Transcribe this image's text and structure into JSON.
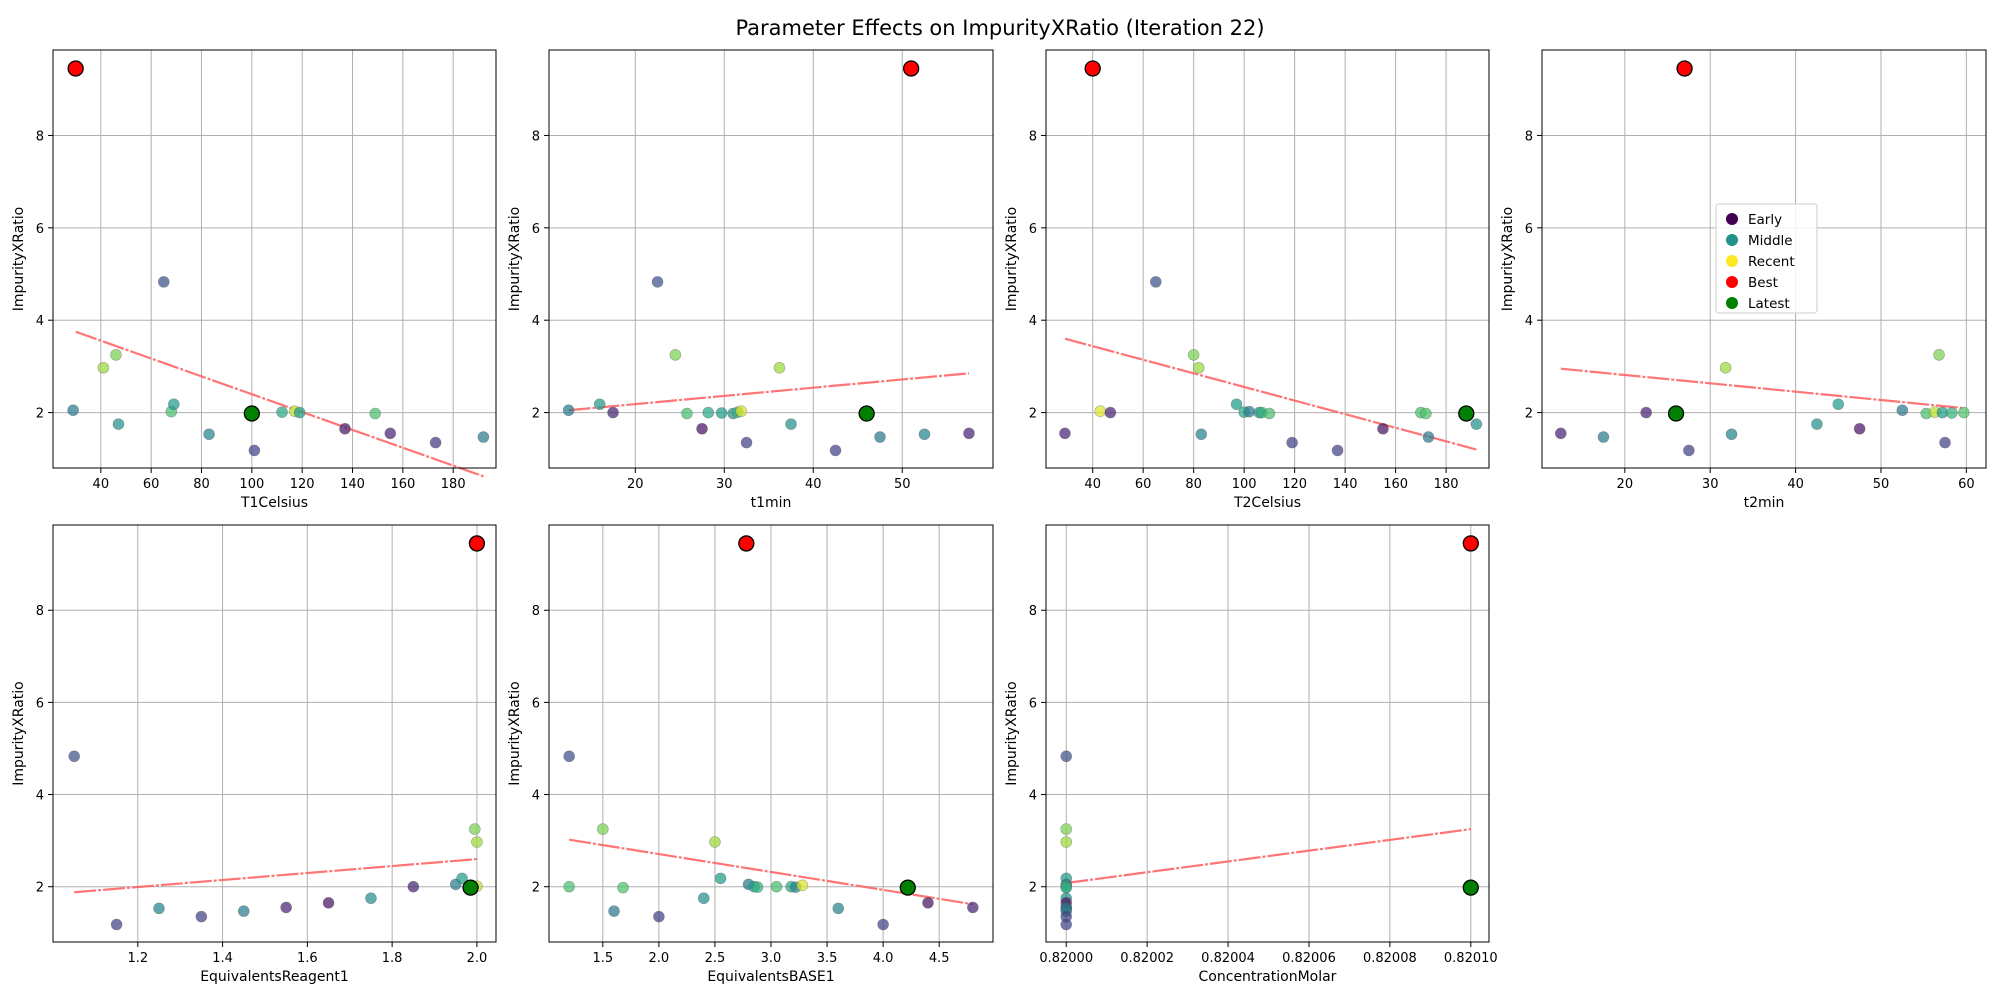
{
  "title": "Parameter Effects on ImpurityXRatio (Iteration 22)",
  "legend": {
    "placement": "inside subplot 4, center-left",
    "entries": [
      {
        "label": "Early",
        "color": "#440154"
      },
      {
        "label": "Middle",
        "color": "#21918c"
      },
      {
        "label": "Recent",
        "color": "#fde725"
      },
      {
        "label": "Best",
        "color": "#ff0000"
      },
      {
        "label": "Latest",
        "color": "#008000"
      }
    ]
  },
  "colors": {
    "trend": "#ff6666",
    "grid": "#b0b0b0",
    "best": "#ff0000",
    "latest": "#008000"
  },
  "chart_data": [
    {
      "type": "scatter",
      "xlabel": "T1Celsius",
      "ylabel": "ImpurityXRatio",
      "xlim": [
        21,
        197
      ],
      "ylim": [
        0.8,
        9.85
      ],
      "xticks": [
        40,
        60,
        80,
        100,
        120,
        140,
        160,
        180
      ],
      "xtick_labels": [
        "40",
        "60",
        "80",
        "100",
        "120",
        "140",
        "160",
        "180"
      ],
      "yticks": [
        2,
        4,
        6,
        8
      ],
      "grid": true,
      "trend": [
        [
          30,
          3.75
        ],
        [
          192,
          0.62
        ]
      ],
      "points": [
        {
          "x": 29,
          "y": 2.05,
          "t": 0.4
        },
        {
          "x": 41,
          "y": 2.97,
          "t": 0.85
        },
        {
          "x": 46,
          "y": 3.25,
          "t": 0.8
        },
        {
          "x": 47,
          "y": 1.75,
          "t": 0.5
        },
        {
          "x": 65,
          "y": 4.83,
          "t": 0.25
        },
        {
          "x": 68,
          "y": 2.02,
          "t": 0.7
        },
        {
          "x": 69,
          "y": 2.18,
          "t": 0.55
        },
        {
          "x": 83,
          "y": 1.53,
          "t": 0.45
        },
        {
          "x": 101,
          "y": 1.18,
          "t": 0.2
        },
        {
          "x": 112,
          "y": 2.01,
          "t": 0.6
        },
        {
          "x": 117,
          "y": 2.03,
          "t": 0.9
        },
        {
          "x": 119,
          "y": 2.0,
          "t": 0.55
        },
        {
          "x": 137,
          "y": 1.65,
          "t": 0.05
        },
        {
          "x": 149,
          "y": 1.98,
          "t": 0.7
        },
        {
          "x": 155,
          "y": 1.55,
          "t": 0.1
        },
        {
          "x": 173,
          "y": 1.35,
          "t": 0.15
        },
        {
          "x": 192,
          "y": 1.47,
          "t": 0.4
        }
      ],
      "best": {
        "x": 30,
        "y": 9.45
      },
      "latest": {
        "x": 100,
        "y": 1.98
      }
    },
    {
      "type": "scatter",
      "xlabel": "t1min",
      "ylabel": "ImpurityXRatio",
      "xlim": [
        10.3,
        60.2
      ],
      "ylim": [
        0.8,
        9.85
      ],
      "xticks": [
        20,
        30,
        40,
        50
      ],
      "xtick_labels": [
        "20",
        "30",
        "40",
        "50"
      ],
      "yticks": [
        2,
        4,
        6,
        8
      ],
      "grid": true,
      "trend": [
        [
          12.5,
          2.05
        ],
        [
          57.5,
          2.85
        ]
      ],
      "points": [
        {
          "x": 12.5,
          "y": 2.05,
          "t": 0.4
        },
        {
          "x": 16,
          "y": 2.18,
          "t": 0.55
        },
        {
          "x": 17.5,
          "y": 2.0,
          "t": 0.1
        },
        {
          "x": 22.5,
          "y": 4.83,
          "t": 0.25
        },
        {
          "x": 24.5,
          "y": 3.25,
          "t": 0.8
        },
        {
          "x": 25.8,
          "y": 1.98,
          "t": 0.7
        },
        {
          "x": 27.5,
          "y": 1.65,
          "t": 0.05
        },
        {
          "x": 28.2,
          "y": 2.0,
          "t": 0.6
        },
        {
          "x": 29.7,
          "y": 1.99,
          "t": 0.55
        },
        {
          "x": 31,
          "y": 1.98,
          "t": 0.5
        },
        {
          "x": 31.5,
          "y": 2.01,
          "t": 0.65
        },
        {
          "x": 31.9,
          "y": 2.03,
          "t": 0.95
        },
        {
          "x": 32.5,
          "y": 1.35,
          "t": 0.2
        },
        {
          "x": 36.2,
          "y": 2.97,
          "t": 0.85
        },
        {
          "x": 37.5,
          "y": 1.75,
          "t": 0.5
        },
        {
          "x": 42.5,
          "y": 1.18,
          "t": 0.2
        },
        {
          "x": 47.5,
          "y": 1.47,
          "t": 0.4
        },
        {
          "x": 52.5,
          "y": 1.53,
          "t": 0.45
        },
        {
          "x": 57.5,
          "y": 1.55,
          "t": 0.1
        }
      ],
      "best": {
        "x": 51,
        "y": 9.45
      },
      "latest": {
        "x": 46,
        "y": 1.98
      }
    },
    {
      "type": "scatter",
      "xlabel": "T2Celsius",
      "ylabel": "ImpurityXRatio",
      "xlim": [
        21.5,
        197
      ],
      "ylim": [
        0.8,
        9.85
      ],
      "xticks": [
        40,
        60,
        80,
        100,
        120,
        140,
        160,
        180
      ],
      "xtick_labels": [
        "40",
        "60",
        "80",
        "100",
        "120",
        "140",
        "160",
        "180"
      ],
      "yticks": [
        2,
        4,
        6,
        8
      ],
      "grid": true,
      "trend": [
        [
          29,
          3.6
        ],
        [
          192,
          1.2
        ]
      ],
      "points": [
        {
          "x": 29,
          "y": 1.55,
          "t": 0.1
        },
        {
          "x": 43,
          "y": 2.03,
          "t": 0.95
        },
        {
          "x": 47,
          "y": 2.0,
          "t": 0.1
        },
        {
          "x": 65,
          "y": 4.83,
          "t": 0.25
        },
        {
          "x": 80,
          "y": 3.25,
          "t": 0.8
        },
        {
          "x": 82,
          "y": 2.97,
          "t": 0.85
        },
        {
          "x": 83,
          "y": 1.53,
          "t": 0.45
        },
        {
          "x": 97,
          "y": 2.18,
          "t": 0.55
        },
        {
          "x": 100,
          "y": 2.01,
          "t": 0.6
        },
        {
          "x": 102,
          "y": 2.02,
          "t": 0.4
        },
        {
          "x": 106,
          "y": 2.0,
          "t": 0.5
        },
        {
          "x": 107,
          "y": 2.0,
          "t": 0.65
        },
        {
          "x": 110,
          "y": 1.98,
          "t": 0.7
        },
        {
          "x": 119,
          "y": 1.35,
          "t": 0.2
        },
        {
          "x": 137,
          "y": 1.18,
          "t": 0.2
        },
        {
          "x": 155,
          "y": 1.65,
          "t": 0.05
        },
        {
          "x": 170,
          "y": 2.0,
          "t": 0.7
        },
        {
          "x": 172,
          "y": 1.98,
          "t": 0.72
        },
        {
          "x": 173,
          "y": 1.47,
          "t": 0.4
        },
        {
          "x": 192,
          "y": 1.75,
          "t": 0.5
        }
      ],
      "best": {
        "x": 40,
        "y": 9.45
      },
      "latest": {
        "x": 188,
        "y": 1.98
      }
    },
    {
      "type": "scatter",
      "xlabel": "t2min",
      "ylabel": "ImpurityXRatio",
      "xlim": [
        10.3,
        62.3
      ],
      "ylim": [
        0.8,
        9.85
      ],
      "xticks": [
        20,
        30,
        40,
        50,
        60
      ],
      "xtick_labels": [
        "20",
        "30",
        "40",
        "50",
        "60"
      ],
      "yticks": [
        2,
        4,
        6,
        8
      ],
      "grid": true,
      "trend": [
        [
          12.5,
          2.95
        ],
        [
          59.5,
          2.1
        ]
      ],
      "points": [
        {
          "x": 12.5,
          "y": 1.55,
          "t": 0.1
        },
        {
          "x": 17.5,
          "y": 1.47,
          "t": 0.4
        },
        {
          "x": 22.5,
          "y": 2.0,
          "t": 0.1
        },
        {
          "x": 27.5,
          "y": 1.18,
          "t": 0.2
        },
        {
          "x": 31.8,
          "y": 2.97,
          "t": 0.85
        },
        {
          "x": 32.5,
          "y": 1.53,
          "t": 0.45
        },
        {
          "x": 42.5,
          "y": 1.75,
          "t": 0.5
        },
        {
          "x": 45,
          "y": 2.18,
          "t": 0.55
        },
        {
          "x": 47.5,
          "y": 1.65,
          "t": 0.05
        },
        {
          "x": 52.5,
          "y": 2.05,
          "t": 0.4
        },
        {
          "x": 55.3,
          "y": 1.98,
          "t": 0.7
        },
        {
          "x": 56.3,
          "y": 2.01,
          "t": 0.9
        },
        {
          "x": 56.8,
          "y": 3.25,
          "t": 0.8
        },
        {
          "x": 57.2,
          "y": 2.0,
          "t": 0.55
        },
        {
          "x": 57.5,
          "y": 1.35,
          "t": 0.2
        },
        {
          "x": 58.3,
          "y": 1.99,
          "t": 0.65
        },
        {
          "x": 59.7,
          "y": 2.0,
          "t": 0.72
        }
      ],
      "best": {
        "x": 27,
        "y": 9.45
      },
      "latest": {
        "x": 26,
        "y": 1.98
      }
    },
    {
      "type": "scatter",
      "xlabel": "EquivalentsReagent1",
      "ylabel": "ImpurityXRatio",
      "xlim": [
        1.0,
        2.045
      ],
      "ylim": [
        0.8,
        9.85
      ],
      "xticks": [
        1.2,
        1.4,
        1.6,
        1.8,
        2.0
      ],
      "xtick_labels": [
        "1.2",
        "1.4",
        "1.6",
        "1.8",
        "2.0"
      ],
      "yticks": [
        2,
        4,
        6,
        8
      ],
      "grid": true,
      "trend": [
        [
          1.05,
          1.88
        ],
        [
          2.0,
          2.6
        ]
      ],
      "points": [
        {
          "x": 1.05,
          "y": 4.83,
          "t": 0.25
        },
        {
          "x": 1.15,
          "y": 1.18,
          "t": 0.2
        },
        {
          "x": 1.25,
          "y": 1.53,
          "t": 0.45
        },
        {
          "x": 1.35,
          "y": 1.35,
          "t": 0.2
        },
        {
          "x": 1.45,
          "y": 1.47,
          "t": 0.4
        },
        {
          "x": 1.55,
          "y": 1.55,
          "t": 0.1
        },
        {
          "x": 1.65,
          "y": 1.65,
          "t": 0.05
        },
        {
          "x": 1.75,
          "y": 1.75,
          "t": 0.5
        },
        {
          "x": 1.85,
          "y": 2.0,
          "t": 0.1
        },
        {
          "x": 1.95,
          "y": 2.05,
          "t": 0.4
        },
        {
          "x": 1.965,
          "y": 2.18,
          "t": 0.55
        },
        {
          "x": 1.995,
          "y": 3.25,
          "t": 0.8
        },
        {
          "x": 2.0,
          "y": 2.97,
          "t": 0.85
        },
        {
          "x": 2.0,
          "y": 2.01,
          "t": 0.9
        }
      ],
      "best": {
        "x": 2.0,
        "y": 9.45
      },
      "latest": {
        "x": 1.985,
        "y": 1.98
      }
    },
    {
      "type": "scatter",
      "xlabel": "EquivalentsBASE1",
      "ylabel": "ImpurityXRatio",
      "xlim": [
        1.02,
        4.98
      ],
      "ylim": [
        0.8,
        9.85
      ],
      "xticks": [
        1.5,
        2.0,
        2.5,
        3.0,
        3.5,
        4.0,
        4.5
      ],
      "xtick_labels": [
        "1.5",
        "2.0",
        "2.5",
        "3.0",
        "3.5",
        "4.0",
        "4.5"
      ],
      "yticks": [
        2,
        4,
        6,
        8
      ],
      "grid": true,
      "trend": [
        [
          1.2,
          3.02
        ],
        [
          4.8,
          1.62
        ]
      ],
      "points": [
        {
          "x": 1.2,
          "y": 4.83,
          "t": 0.25
        },
        {
          "x": 1.2,
          "y": 2.0,
          "t": 0.7
        },
        {
          "x": 1.5,
          "y": 3.25,
          "t": 0.8
        },
        {
          "x": 1.6,
          "y": 1.47,
          "t": 0.4
        },
        {
          "x": 1.68,
          "y": 1.98,
          "t": 0.72
        },
        {
          "x": 2.0,
          "y": 1.35,
          "t": 0.2
        },
        {
          "x": 2.4,
          "y": 1.75,
          "t": 0.5
        },
        {
          "x": 2.5,
          "y": 2.97,
          "t": 0.85
        },
        {
          "x": 2.55,
          "y": 2.18,
          "t": 0.55
        },
        {
          "x": 2.8,
          "y": 2.05,
          "t": 0.4
        },
        {
          "x": 2.85,
          "y": 2.0,
          "t": 0.55
        },
        {
          "x": 2.88,
          "y": 1.99,
          "t": 0.65
        },
        {
          "x": 3.05,
          "y": 2.0,
          "t": 0.7
        },
        {
          "x": 3.18,
          "y": 2.0,
          "t": 0.6
        },
        {
          "x": 3.22,
          "y": 1.99,
          "t": 0.45
        },
        {
          "x": 3.28,
          "y": 2.03,
          "t": 0.95
        },
        {
          "x": 3.6,
          "y": 1.53,
          "t": 0.45
        },
        {
          "x": 4.0,
          "y": 1.18,
          "t": 0.2
        },
        {
          "x": 4.4,
          "y": 1.65,
          "t": 0.05
        },
        {
          "x": 4.8,
          "y": 1.55,
          "t": 0.1
        }
      ],
      "best": {
        "x": 2.78,
        "y": 9.45
      },
      "latest": {
        "x": 4.22,
        "y": 1.98
      }
    },
    {
      "type": "scatter",
      "xlabel": "ConcentrationMolar",
      "ylabel": "ImpurityXRatio",
      "xlim": [
        0.819995,
        0.8201045
      ],
      "ylim": [
        0.8,
        9.85
      ],
      "xticks": [
        0.82,
        0.82002,
        0.82004,
        0.82006,
        0.82008,
        0.8201
      ],
      "xtick_labels": [
        "0.82000",
        "0.82002",
        "0.82004",
        "0.82006",
        "0.82008",
        "0.82010"
      ],
      "yticks": [
        2,
        4,
        6,
        8
      ],
      "grid": true,
      "trend": [
        [
          0.82,
          2.08
        ],
        [
          0.8201,
          3.25
        ]
      ],
      "points": [
        {
          "x": 0.82,
          "y": 4.83,
          "t": 0.25
        },
        {
          "x": 0.82,
          "y": 3.25,
          "t": 0.8
        },
        {
          "x": 0.82,
          "y": 2.97,
          "t": 0.85
        },
        {
          "x": 0.82,
          "y": 2.18,
          "t": 0.55
        },
        {
          "x": 0.82,
          "y": 2.05,
          "t": 0.4
        },
        {
          "x": 0.82,
          "y": 2.0,
          "t": 0.7
        },
        {
          "x": 0.82,
          "y": 1.98,
          "t": 0.6
        },
        {
          "x": 0.82,
          "y": 1.75,
          "t": 0.5
        },
        {
          "x": 0.82,
          "y": 1.65,
          "t": 0.05
        },
        {
          "x": 0.82,
          "y": 1.55,
          "t": 0.1
        },
        {
          "x": 0.82,
          "y": 1.53,
          "t": 0.45
        },
        {
          "x": 0.82,
          "y": 1.47,
          "t": 0.4
        },
        {
          "x": 0.82,
          "y": 1.35,
          "t": 0.2
        },
        {
          "x": 0.82,
          "y": 1.18,
          "t": 0.2
        }
      ],
      "best": {
        "x": 0.8201,
        "y": 9.45
      },
      "latest": {
        "x": 0.8201,
        "y": 1.98
      }
    }
  ]
}
